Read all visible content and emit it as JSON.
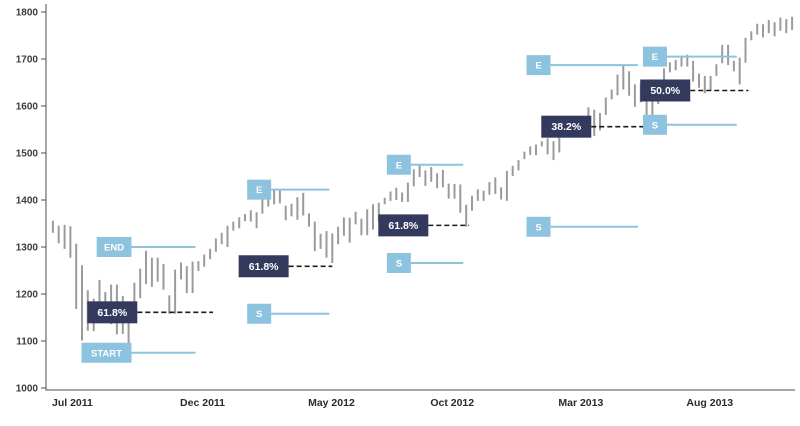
{
  "chart_data": {
    "type": "bar",
    "subtype": "weekly-high-low-price-bars",
    "title": "",
    "description": "Stock index weekly price bars (Jul 2011 - Dec 2013) with five successive Fibonacci retracement measurements marked by start (S/START), end (E/END) levels and retracement percentage levels",
    "grid": false,
    "legend": null,
    "colors": {
      "background": "#ffffff",
      "bar": "#9b9b9b",
      "axis": "#4d4d4d",
      "marker_light": "#8dc3de",
      "marker_dark": "#343a5e",
      "level_line": "#1a1a1a",
      "box_text": "#ffffff"
    },
    "y_axis": {
      "min": 1000,
      "max": 1800,
      "ticks": [
        1000,
        1100,
        1200,
        1300,
        1400,
        1500,
        1600,
        1700,
        1800
      ]
    },
    "x_axis": {
      "ticks": [
        {
          "label": "Jul 2011",
          "week": 0
        },
        {
          "label": "Dec 2011",
          "week": 22
        },
        {
          "label": "May 2012",
          "week": 44
        },
        {
          "label": "Oct 2012",
          "week": 65
        },
        {
          "label": "Mar 2013",
          "week": 87
        },
        {
          "label": "Aug 2013",
          "week": 109
        }
      ]
    },
    "bars_low_high": [
      [
        1330,
        1356
      ],
      [
        1308,
        1345
      ],
      [
        1296,
        1347
      ],
      [
        1277,
        1344
      ],
      [
        1168,
        1307
      ],
      [
        1101,
        1261
      ],
      [
        1122,
        1208
      ],
      [
        1121,
        1190
      ],
      [
        1177,
        1230
      ],
      [
        1140,
        1204
      ],
      [
        1136,
        1220
      ],
      [
        1114,
        1220
      ],
      [
        1115,
        1196
      ],
      [
        1074,
        1171
      ],
      [
        1158,
        1224
      ],
      [
        1191,
        1254
      ],
      [
        1221,
        1292
      ],
      [
        1215,
        1277
      ],
      [
        1226,
        1277
      ],
      [
        1209,
        1264
      ],
      [
        1158,
        1197
      ],
      [
        1158,
        1252
      ],
      [
        1231,
        1267
      ],
      [
        1202,
        1259
      ],
      [
        1202,
        1269
      ],
      [
        1249,
        1270
      ],
      [
        1258,
        1284
      ],
      [
        1274,
        1296
      ],
      [
        1290,
        1318
      ],
      [
        1306,
        1330
      ],
      [
        1300,
        1345
      ],
      [
        1335,
        1354
      ],
      [
        1340,
        1363
      ],
      [
        1355,
        1370
      ],
      [
        1354,
        1378
      ],
      [
        1340,
        1374
      ],
      [
        1371,
        1406
      ],
      [
        1386,
        1414
      ],
      [
        1391,
        1421
      ],
      [
        1393,
        1422
      ],
      [
        1357,
        1388
      ],
      [
        1365,
        1392
      ],
      [
        1358,
        1406
      ],
      [
        1367,
        1415
      ],
      [
        1343,
        1372
      ],
      [
        1291,
        1354
      ],
      [
        1296,
        1328
      ],
      [
        1277,
        1334
      ],
      [
        1266,
        1329
      ],
      [
        1306,
        1343
      ],
      [
        1324,
        1363
      ],
      [
        1309,
        1362
      ],
      [
        1348,
        1375
      ],
      [
        1325,
        1360
      ],
      [
        1325,
        1380
      ],
      [
        1337,
        1391
      ],
      [
        1354,
        1394
      ],
      [
        1391,
        1405
      ],
      [
        1398,
        1418
      ],
      [
        1400,
        1426
      ],
      [
        1396,
        1416
      ],
      [
        1396,
        1437
      ],
      [
        1429,
        1465
      ],
      [
        1449,
        1474
      ],
      [
        1430,
        1463
      ],
      [
        1439,
        1470
      ],
      [
        1425,
        1457
      ],
      [
        1427,
        1464
      ],
      [
        1403,
        1435
      ],
      [
        1403,
        1434
      ],
      [
        1373,
        1433
      ],
      [
        1343,
        1390
      ],
      [
        1377,
        1409
      ],
      [
        1398,
        1423
      ],
      [
        1398,
        1420
      ],
      [
        1411,
        1438
      ],
      [
        1413,
        1448
      ],
      [
        1401,
        1427
      ],
      [
        1398,
        1462
      ],
      [
        1451,
        1473
      ],
      [
        1463,
        1485
      ],
      [
        1487,
        1503
      ],
      [
        1496,
        1514
      ],
      [
        1495,
        1518
      ],
      [
        1514,
        1525
      ],
      [
        1497,
        1531
      ],
      [
        1485,
        1525
      ],
      [
        1501,
        1552
      ],
      [
        1547,
        1563
      ],
      [
        1538,
        1561
      ],
      [
        1546,
        1570
      ],
      [
        1539,
        1573
      ],
      [
        1548,
        1597
      ],
      [
        1536,
        1592
      ],
      [
        1548,
        1585
      ],
      [
        1581,
        1618
      ],
      [
        1614,
        1635
      ],
      [
        1623,
        1667
      ],
      [
        1635,
        1687
      ],
      [
        1622,
        1674
      ],
      [
        1598,
        1646
      ],
      [
        1608,
        1649
      ],
      [
        1577,
        1654
      ],
      [
        1560,
        1620
      ],
      [
        1604,
        1632
      ],
      [
        1621,
        1680
      ],
      [
        1672,
        1693
      ],
      [
        1676,
        1698
      ],
      [
        1684,
        1707
      ],
      [
        1684,
        1709
      ],
      [
        1652,
        1696
      ],
      [
        1639,
        1669
      ],
      [
        1627,
        1664
      ],
      [
        1633,
        1664
      ],
      [
        1664,
        1689
      ],
      [
        1691,
        1730
      ],
      [
        1687,
        1730
      ],
      [
        1674,
        1696
      ],
      [
        1646,
        1703
      ],
      [
        1692,
        1745
      ],
      [
        1740,
        1759
      ],
      [
        1752,
        1775
      ],
      [
        1746,
        1774
      ],
      [
        1755,
        1783
      ],
      [
        1748,
        1778
      ],
      [
        1760,
        1788
      ],
      [
        1755,
        1785
      ],
      [
        1762,
        1790
      ]
    ],
    "retracements": [
      {
        "name": "retracement-1",
        "start": {
          "label": "START",
          "price": 1075,
          "box_end_week": 14,
          "line_end_week": 25
        },
        "end": {
          "label": "END",
          "price": 1300,
          "box_end_week": 14,
          "line_end_week": 25
        },
        "level": {
          "label": "61.8%",
          "price": 1161,
          "box_end_week": 15,
          "line_end_week": 28
        }
      },
      {
        "name": "retracement-2",
        "start": {
          "label": "S",
          "price": 1158,
          "box_end_week": 38,
          "line_end_week": 48
        },
        "end": {
          "label": "E",
          "price": 1422,
          "box_end_week": 38,
          "line_end_week": 48
        },
        "level": {
          "label": "61.8%",
          "price": 1259,
          "box_end_week": 41,
          "line_end_week": 48.5
        }
      },
      {
        "name": "retracement-3",
        "start": {
          "label": "S",
          "price": 1266,
          "box_end_week": 62,
          "line_end_week": 71
        },
        "end": {
          "label": "E",
          "price": 1475,
          "box_end_week": 62,
          "line_end_week": 71
        },
        "level": {
          "label": "61.8%",
          "price": 1346,
          "box_end_week": 65,
          "line_end_week": 72
        }
      },
      {
        "name": "retracement-4",
        "start": {
          "label": "S",
          "price": 1343,
          "box_end_week": 86,
          "line_end_week": 101
        },
        "end": {
          "label": "E",
          "price": 1687,
          "box_end_week": 86,
          "line_end_week": 101
        },
        "level": {
          "label": "38.2%",
          "price": 1556,
          "box_end_week": 93,
          "line_end_week": 103
        }
      },
      {
        "name": "retracement-5",
        "start": {
          "label": "S",
          "price": 1560,
          "box_end_week": 106,
          "line_end_week": 118
        },
        "end": {
          "label": "E",
          "price": 1705,
          "box_end_week": 106,
          "line_end_week": 118
        },
        "level": {
          "label": "50.0%",
          "price": 1633,
          "box_end_week": 110,
          "line_end_week": 120
        }
      }
    ]
  }
}
